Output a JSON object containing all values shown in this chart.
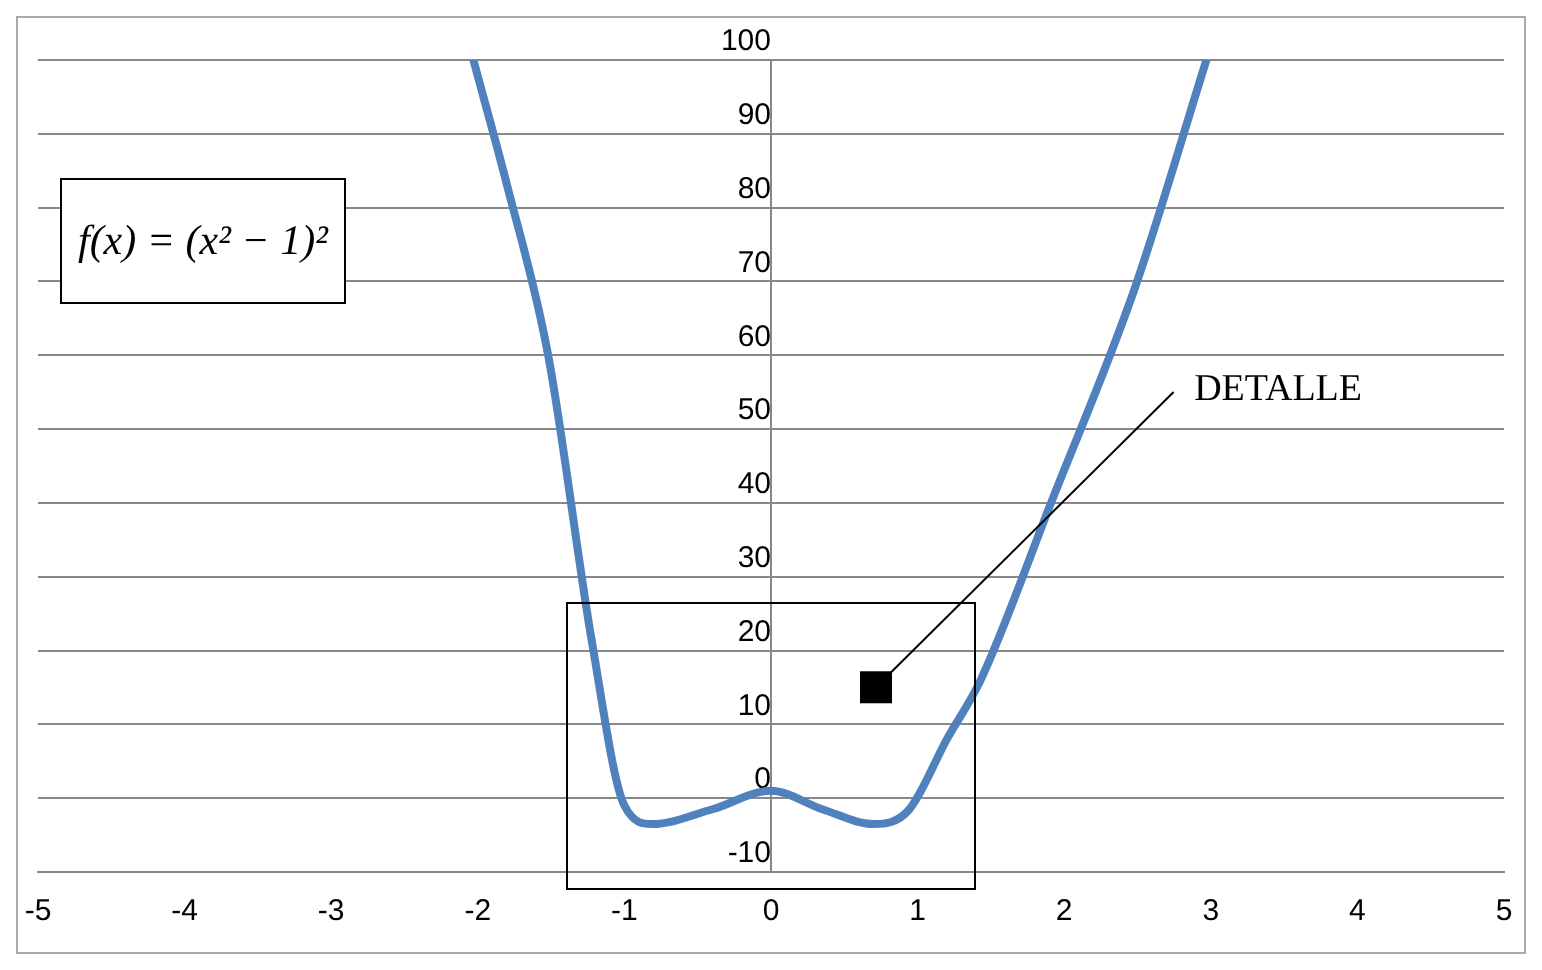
{
  "chart_data": {
    "type": "line",
    "x": [
      -2.03,
      -1.8,
      -1.52,
      -1.22,
      -1.0,
      -0.81,
      -0.4,
      0,
      0.35,
      0.7,
      0.94,
      1.2,
      1.43,
      1.91,
      2.48,
      2.97
    ],
    "series": [
      {
        "color": "#4f81bd",
        "values": [
          100,
          83,
          60,
          21,
          -1,
          -3.5,
          -1.5,
          1,
          -1.5,
          -3.5,
          -1.6,
          8,
          16,
          40,
          69,
          100
        ]
      }
    ],
    "xlim": [
      -5,
      5
    ],
    "xticks": [
      -5,
      -4,
      -3,
      -2,
      -1,
      0,
      1,
      2,
      3,
      4,
      5
    ],
    "ylim": [
      -10,
      100
    ],
    "yticks": [
      -10,
      0,
      10,
      20,
      30,
      40,
      50,
      60,
      70,
      80,
      90,
      100
    ],
    "grid": "y",
    "legend": false,
    "marker": "none",
    "line_style": "solid",
    "annotations": [
      "f(x) = (x² − 1)²",
      "DETALLE"
    ]
  }
}
